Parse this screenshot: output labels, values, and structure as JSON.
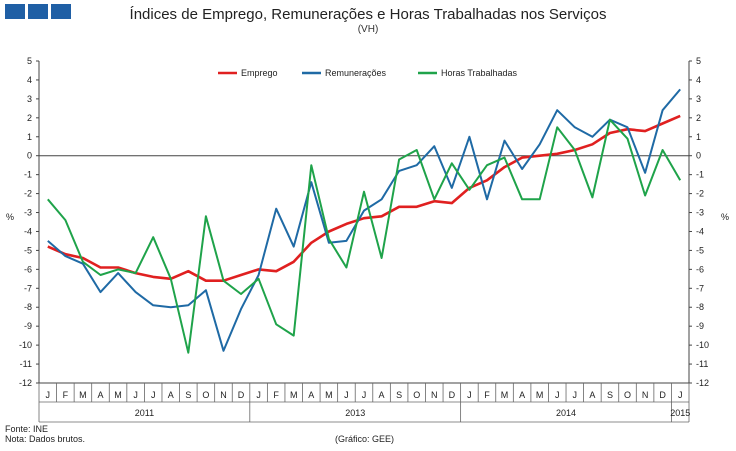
{
  "header": {
    "logo": "logo-squares",
    "title": "Índices de Emprego, Remunerações e Horas Trabalhadas nos Serviços",
    "subtitle": "(VH)"
  },
  "footer": {
    "source": "Fonte: INE",
    "note": "Nota: Dados brutos.",
    "chart_ref": "(Gráfico: GEE)"
  },
  "chart_data": {
    "type": "line",
    "title": "Índices de Emprego, Remunerações e Horas Trabalhadas nos Serviços",
    "subtitle": "(VH)",
    "ylabel": "%",
    "ylabel_right": "%",
    "ylim": [
      -12,
      5
    ],
    "yticks": [
      5,
      4,
      3,
      2,
      1,
      0,
      -1,
      -2,
      -3,
      -4,
      -5,
      -6,
      -7,
      -8,
      -9,
      -10,
      -11,
      -12
    ],
    "legend_position": "top",
    "categories": [
      "J",
      "F",
      "M",
      "A",
      "M",
      "J",
      "J",
      "A",
      "S",
      "O",
      "N",
      "D",
      "J",
      "F",
      "M",
      "A",
      "M",
      "J",
      "J",
      "A",
      "S",
      "O",
      "N",
      "D",
      "J",
      "F",
      "M",
      "A",
      "M",
      "J",
      "J",
      "A",
      "S",
      "O",
      "N",
      "D",
      "J"
    ],
    "year_labels": [
      "2011",
      "2013",
      "2014",
      "2015"
    ],
    "series": [
      {
        "name": "Emprego",
        "color": "#e02020",
        "values": [
          -4.8,
          -5.2,
          -5.4,
          -5.9,
          -5.9,
          -6.2,
          -6.4,
          -6.5,
          -6.1,
          -6.6,
          -6.6,
          -6.3,
          -6.0,
          -6.1,
          -5.6,
          -4.6,
          -4.0,
          -3.6,
          -3.3,
          -3.2,
          -2.7,
          -2.7,
          -2.4,
          -2.5,
          -1.7,
          -1.3,
          -0.6,
          -0.1,
          0.0,
          0.1,
          0.3,
          0.6,
          1.2,
          1.4,
          1.3,
          1.7,
          2.1
        ]
      },
      {
        "name": "Remunerações",
        "color": "#1f6aa5",
        "values": [
          -4.5,
          -5.3,
          -5.7,
          -7.2,
          -6.2,
          -7.2,
          -7.9,
          -8.0,
          -7.9,
          -7.1,
          -10.3,
          -8.1,
          -6.3,
          -2.8,
          -4.8,
          -1.4,
          -4.6,
          -4.5,
          -2.9,
          -2.3,
          -0.8,
          -0.5,
          0.5,
          -1.7,
          1.0,
          -2.3,
          0.8,
          -0.7,
          0.6,
          2.4,
          1.5,
          1.0,
          1.9,
          1.5,
          -0.9,
          2.4,
          3.5
        ]
      },
      {
        "name": "Horas Trabalhadas",
        "color": "#1fa34a",
        "values": [
          -2.3,
          -3.4,
          -5.6,
          -6.3,
          -6.0,
          -6.2,
          -4.3,
          -6.5,
          -10.4,
          -3.2,
          -6.6,
          -7.3,
          -6.5,
          -8.9,
          -9.5,
          -0.5,
          -4.4,
          -5.9,
          -1.9,
          -5.4,
          -0.2,
          0.3,
          -2.3,
          -0.4,
          -1.8,
          -0.5,
          -0.1,
          -2.3,
          -2.3,
          1.5,
          0.3,
          -2.2,
          1.9,
          0.9,
          -2.1,
          0.3,
          -1.3
        ]
      }
    ]
  }
}
